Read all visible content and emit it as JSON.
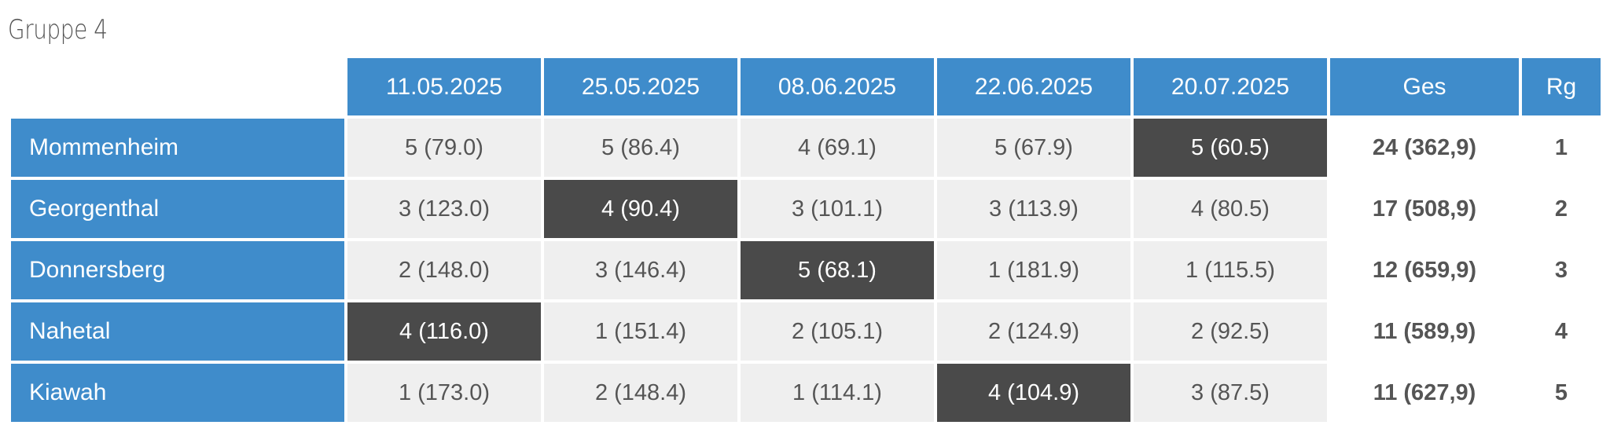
{
  "title": "Gruppe 4",
  "columns": [
    "11.05.2025",
    "25.05.2025",
    "08.06.2025",
    "22.06.2025",
    "20.07.2025",
    "Ges",
    "Rg"
  ],
  "rows": [
    {
      "team": "Mommenheim",
      "results": [
        {
          "text": "5 (79.0)",
          "highlight": false
        },
        {
          "text": "5 (86.4)",
          "highlight": false
        },
        {
          "text": "4 (69.1)",
          "highlight": false
        },
        {
          "text": "5 (67.9)",
          "highlight": false
        },
        {
          "text": "5 (60.5)",
          "highlight": true
        }
      ],
      "total": "24 (362,9)",
      "rank": "1"
    },
    {
      "team": "Georgenthal",
      "results": [
        {
          "text": "3 (123.0)",
          "highlight": false
        },
        {
          "text": "4 (90.4)",
          "highlight": true
        },
        {
          "text": "3 (101.1)",
          "highlight": false
        },
        {
          "text": "3 (113.9)",
          "highlight": false
        },
        {
          "text": "4 (80.5)",
          "highlight": false
        }
      ],
      "total": "17 (508,9)",
      "rank": "2"
    },
    {
      "team": "Donnersberg",
      "results": [
        {
          "text": "2 (148.0)",
          "highlight": false
        },
        {
          "text": "3 (146.4)",
          "highlight": false
        },
        {
          "text": "5 (68.1)",
          "highlight": true
        },
        {
          "text": "1 (181.9)",
          "highlight": false
        },
        {
          "text": "1 (115.5)",
          "highlight": false
        }
      ],
      "total": "12 (659,9)",
      "rank": "3"
    },
    {
      "team": "Nahetal",
      "results": [
        {
          "text": "4 (116.0)",
          "highlight": true
        },
        {
          "text": "1 (151.4)",
          "highlight": false
        },
        {
          "text": "2 (105.1)",
          "highlight": false
        },
        {
          "text": "2 (124.9)",
          "highlight": false
        },
        {
          "text": "2 (92.5)",
          "highlight": false
        }
      ],
      "total": "11 (589,9)",
      "rank": "4"
    },
    {
      "team": "Kiawah",
      "results": [
        {
          "text": "1 (173.0)",
          "highlight": false
        },
        {
          "text": "2 (148.4)",
          "highlight": false
        },
        {
          "text": "1 (114.1)",
          "highlight": false
        },
        {
          "text": "4 (104.9)",
          "highlight": true
        },
        {
          "text": "3 (87.5)",
          "highlight": false
        }
      ],
      "total": "11 (627,9)",
      "rank": "5"
    }
  ],
  "colors": {
    "header_bg": "#3f8ccb",
    "cell_bg": "#efefef",
    "highlight_bg": "#4a4a4a",
    "text": "#555555"
  }
}
